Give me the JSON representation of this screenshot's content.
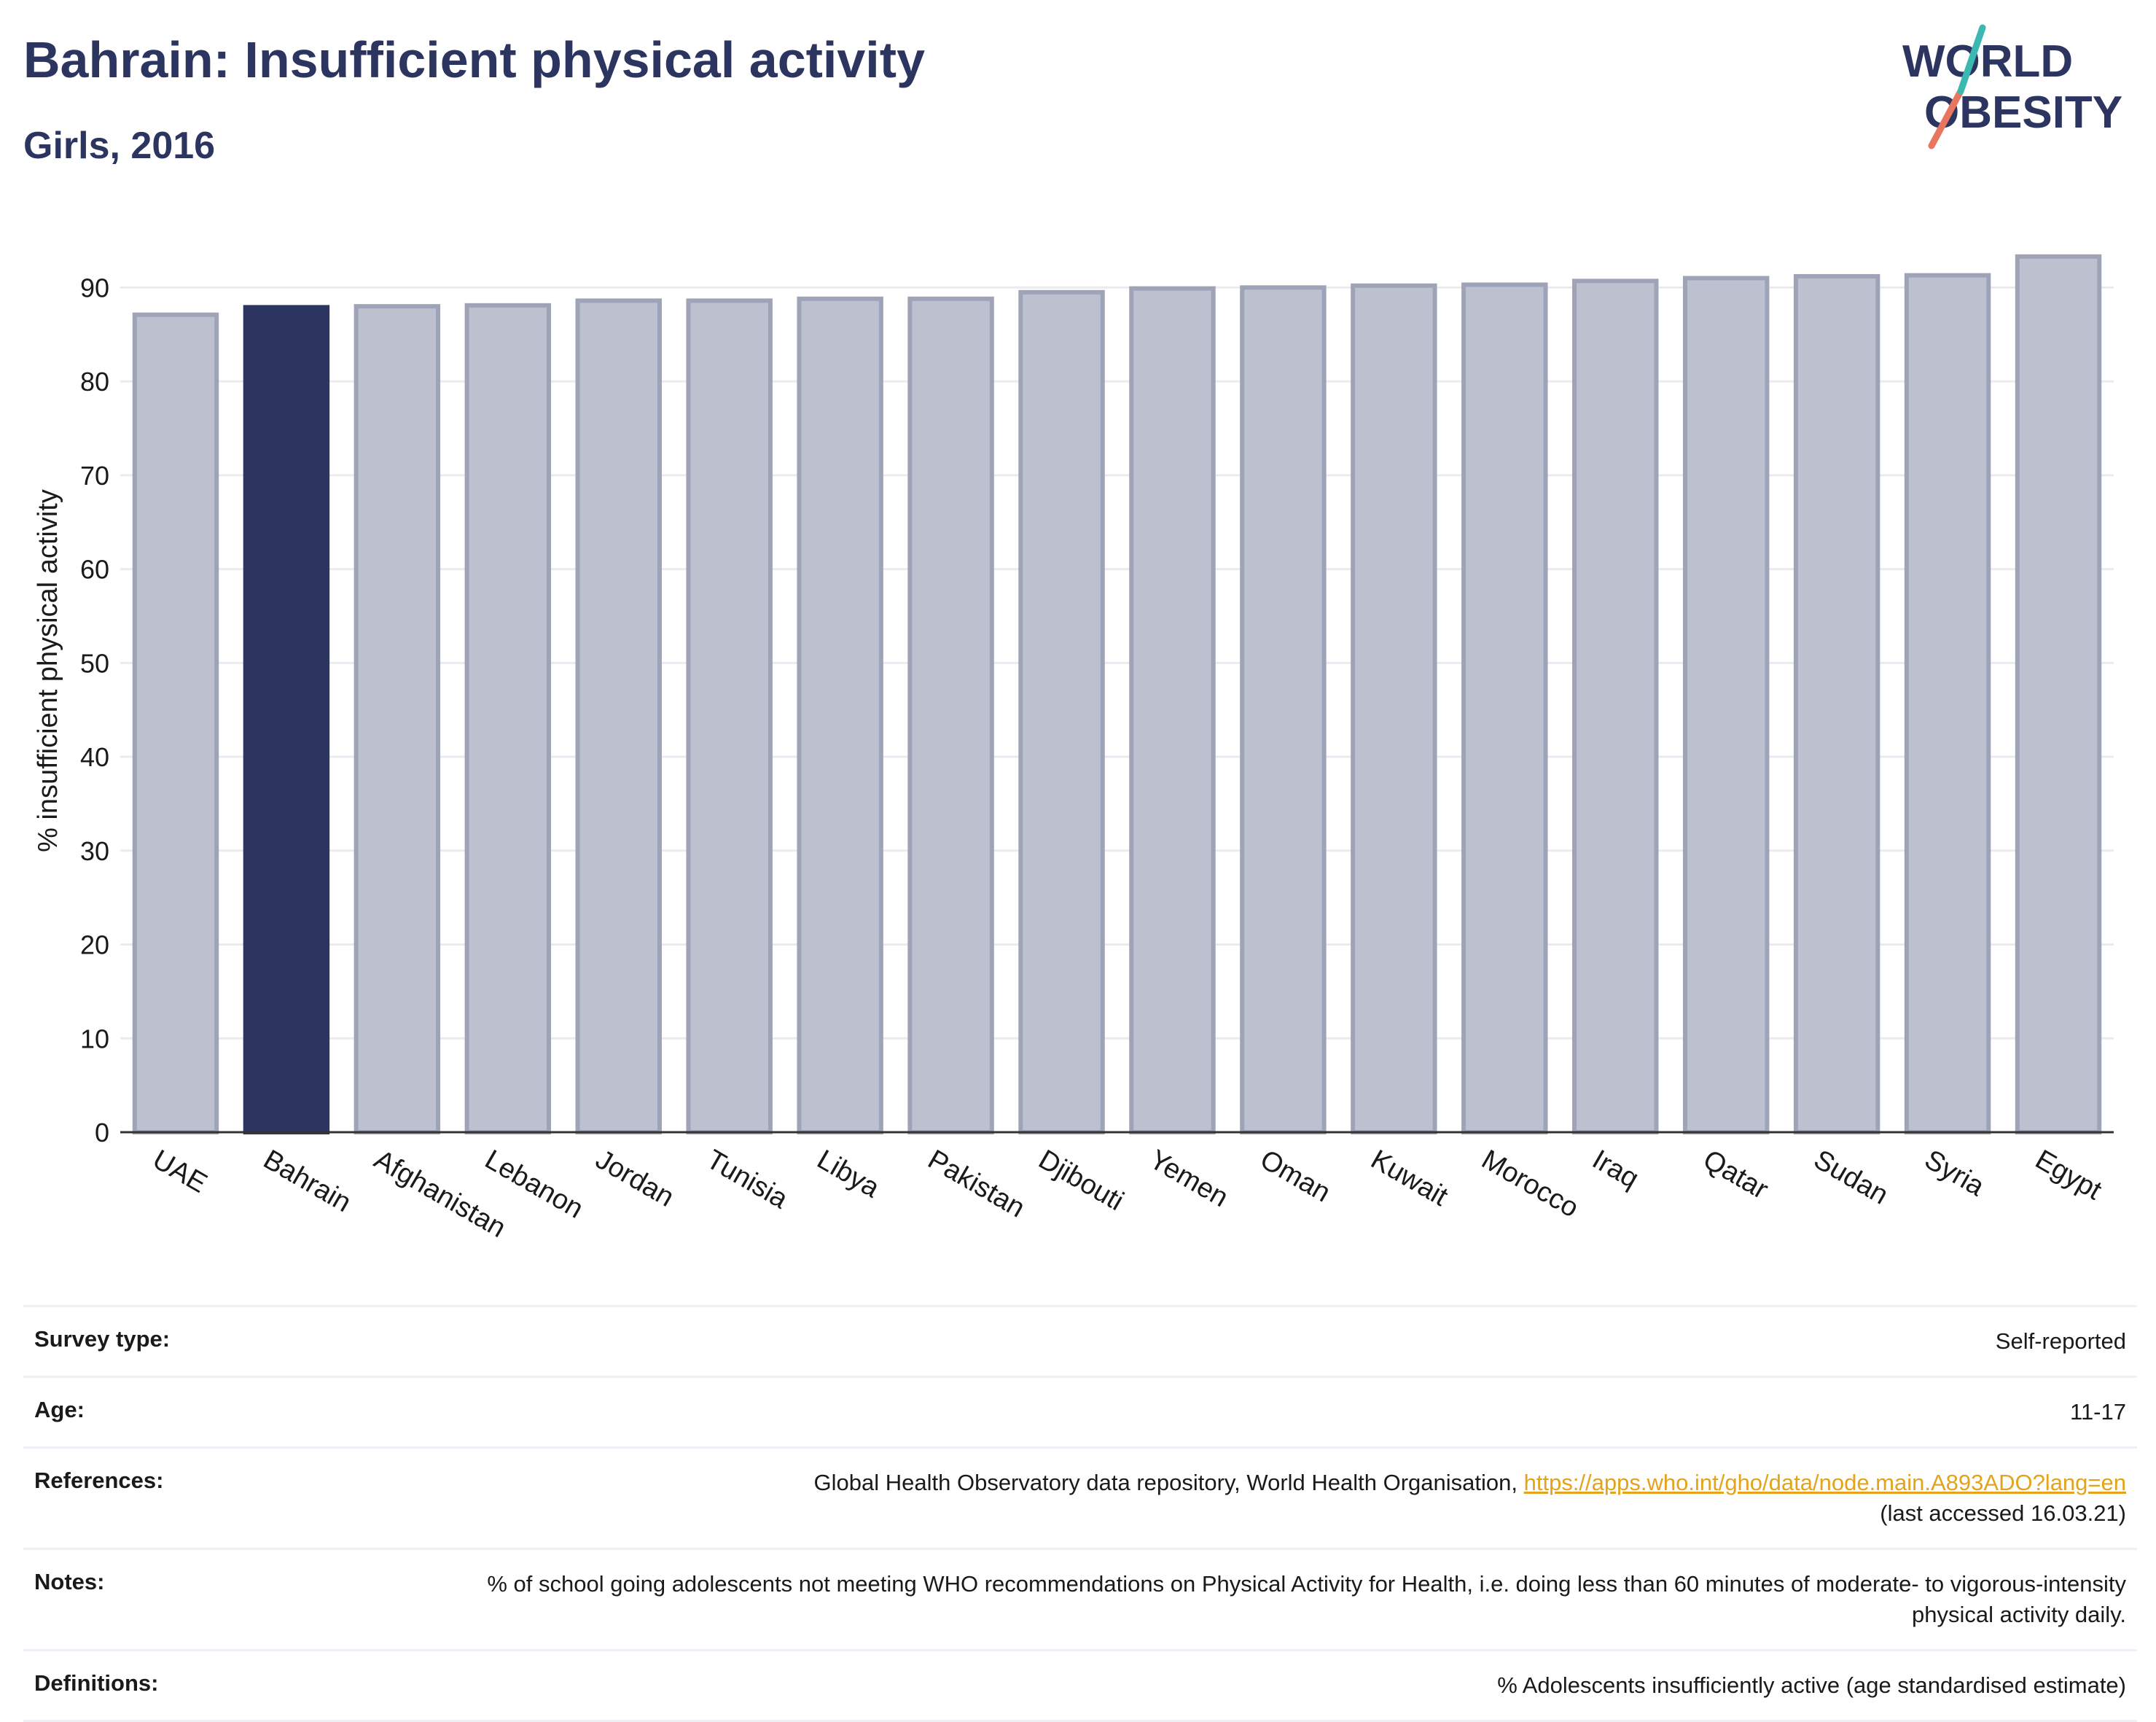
{
  "header": {
    "title": "Bahrain: Insufficient physical activity",
    "subtitle": "Girls, 2016"
  },
  "logo": {
    "line1": "WORLD",
    "line2": "OBESITY"
  },
  "colors": {
    "highlight": "#2b3560",
    "bar": "#bdc1cf",
    "bar_stroke": "#9ea3b8",
    "text": "#2b3560",
    "link": "#e3a31a"
  },
  "chart_data": {
    "type": "bar",
    "categories": [
      "UAE",
      "Bahrain",
      "Afghanistan",
      "Lebanon",
      "Jordan",
      "Tunisia",
      "Libya",
      "Pakistan",
      "Djibouti",
      "Yemen",
      "Oman",
      "Kuwait",
      "Morocco",
      "Iraq",
      "Qatar",
      "Sudan",
      "Syria",
      "Egypt"
    ],
    "values": [
      87.1,
      87.9,
      88.0,
      88.1,
      88.6,
      88.6,
      88.8,
      88.8,
      89.5,
      89.9,
      90.0,
      90.2,
      90.3,
      90.7,
      91.0,
      91.2,
      91.3,
      93.3
    ],
    "highlight": "Bahrain",
    "title": "Bahrain: Insufficient physical activity",
    "subtitle": "Girls, 2016",
    "xlabel": "",
    "ylabel": "% insufficient physical activity",
    "ylim": [
      0,
      95
    ],
    "yticks": [
      0,
      10,
      20,
      30,
      40,
      50,
      60,
      70,
      80,
      90
    ],
    "grid": true
  },
  "info": [
    {
      "key": "Survey type:",
      "value": "Self-reported"
    },
    {
      "key": "Age:",
      "value": "11-17"
    },
    {
      "key": "References:",
      "value": "Global Health Observatory data repository, World Health Organisation, ",
      "link": "https://apps.who.int/gho/data/node.main.A893ADO?lang=en",
      "value2": "(last accessed 16.03.21)"
    },
    {
      "key": "Notes:",
      "value": "% of school going adolescents not meeting WHO recommendations on Physical Activity for Health, i.e. doing less than 60 minutes of moderate- to vigorous-intensity physical activity daily."
    },
    {
      "key": "Definitions:",
      "value": "% Adolescents insufficiently active (age standardised estimate)"
    }
  ]
}
